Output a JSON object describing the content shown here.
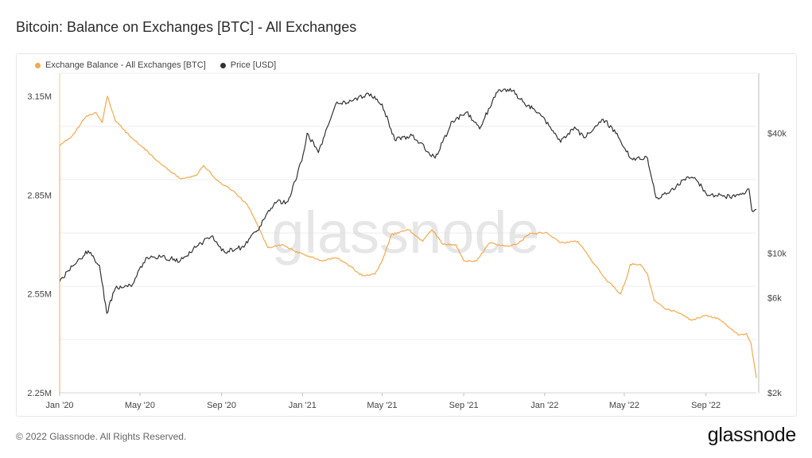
{
  "title": "Bitcoin: Balance on Exchanges [BTC] - All Exchanges",
  "footer": {
    "copyright": "© 2022 Glassnode. All Rights Reserved.",
    "brand": "glassnode"
  },
  "watermark": "glassnode",
  "colors": {
    "balance": "#f5a94c",
    "price": "#333333",
    "grid": "#ececec"
  },
  "chart_data": {
    "type": "line",
    "legend_position": "top-left",
    "grid": true,
    "x": {
      "range": [
        "2020-01-01",
        "2022-11-16"
      ],
      "ticks": [
        {
          "date": "2020-01-01",
          "label": "Jan '20"
        },
        {
          "date": "2020-05-01",
          "label": "May '20"
        },
        {
          "date": "2020-09-01",
          "label": "Sep '20"
        },
        {
          "date": "2021-01-01",
          "label": "Jan '21"
        },
        {
          "date": "2021-05-01",
          "label": "May '21"
        },
        {
          "date": "2021-09-01",
          "label": "Sep '21"
        },
        {
          "date": "2022-01-01",
          "label": "Jan '22"
        },
        {
          "date": "2022-05-01",
          "label": "May '22"
        },
        {
          "date": "2022-09-01",
          "label": "Sep '22"
        }
      ]
    },
    "y_left": {
      "scale": "linear",
      "range": [
        2250000,
        3220000
      ],
      "ticks": [
        {
          "value": 2250000,
          "label": "2.25M"
        },
        {
          "value": 2550000,
          "label": "2.55M"
        },
        {
          "value": 2850000,
          "label": "2.85M"
        },
        {
          "value": 3150000,
          "label": "3.15M"
        }
      ]
    },
    "y_right": {
      "scale": "log",
      "range": [
        2000,
        80000
      ],
      "ticks": [
        {
          "value": 2000,
          "label": "$2k"
        },
        {
          "value": 6000,
          "label": "$6k"
        },
        {
          "value": 10000,
          "label": "$10k"
        },
        {
          "value": 40000,
          "label": "$40k"
        }
      ]
    },
    "series": [
      {
        "name": "Exchange Balance - All Exchanges [BTC]",
        "axis": "left",
        "color": "#f5a94c",
        "points": [
          [
            "2020-01-01",
            3000000
          ],
          [
            "2020-01-20",
            3030000
          ],
          [
            "2020-02-10",
            3090000
          ],
          [
            "2020-02-25",
            3100000
          ],
          [
            "2020-03-05",
            3070000
          ],
          [
            "2020-03-13",
            3150000
          ],
          [
            "2020-03-25",
            3075000
          ],
          [
            "2020-04-15",
            3030000
          ],
          [
            "2020-05-05",
            2995000
          ],
          [
            "2020-06-01",
            2945000
          ],
          [
            "2020-07-01",
            2900000
          ],
          [
            "2020-07-25",
            2910000
          ],
          [
            "2020-08-05",
            2940000
          ],
          [
            "2020-08-25",
            2895000
          ],
          [
            "2020-09-20",
            2860000
          ],
          [
            "2020-10-10",
            2820000
          ],
          [
            "2020-10-25",
            2760000
          ],
          [
            "2020-11-10",
            2690000
          ],
          [
            "2020-12-01",
            2700000
          ],
          [
            "2020-12-20",
            2680000
          ],
          [
            "2021-01-10",
            2665000
          ],
          [
            "2021-02-01",
            2650000
          ],
          [
            "2021-02-20",
            2660000
          ],
          [
            "2021-03-10",
            2640000
          ],
          [
            "2021-04-01",
            2605000
          ],
          [
            "2021-04-20",
            2610000
          ],
          [
            "2021-05-01",
            2650000
          ],
          [
            "2021-05-15",
            2730000
          ],
          [
            "2021-06-10",
            2745000
          ],
          [
            "2021-07-01",
            2710000
          ],
          [
            "2021-07-15",
            2745000
          ],
          [
            "2021-08-01",
            2700000
          ],
          [
            "2021-08-20",
            2700000
          ],
          [
            "2021-09-01",
            2650000
          ],
          [
            "2021-09-20",
            2650000
          ],
          [
            "2021-10-10",
            2705000
          ],
          [
            "2021-11-01",
            2695000
          ],
          [
            "2021-11-20",
            2700000
          ],
          [
            "2021-12-10",
            2735000
          ],
          [
            "2022-01-05",
            2735000
          ],
          [
            "2022-01-25",
            2705000
          ],
          [
            "2022-02-20",
            2710000
          ],
          [
            "2022-03-10",
            2660000
          ],
          [
            "2022-04-01",
            2600000
          ],
          [
            "2022-04-25",
            2550000
          ],
          [
            "2022-05-03",
            2590000
          ],
          [
            "2022-05-10",
            2640000
          ],
          [
            "2022-05-25",
            2640000
          ],
          [
            "2022-06-05",
            2610000
          ],
          [
            "2022-06-15",
            2530000
          ],
          [
            "2022-07-01",
            2505000
          ],
          [
            "2022-07-20",
            2495000
          ],
          [
            "2022-08-10",
            2470000
          ],
          [
            "2022-09-01",
            2485000
          ],
          [
            "2022-09-20",
            2475000
          ],
          [
            "2022-10-05",
            2450000
          ],
          [
            "2022-10-20",
            2425000
          ],
          [
            "2022-11-01",
            2430000
          ],
          [
            "2022-11-08",
            2400000
          ],
          [
            "2022-11-16",
            2295000
          ]
        ]
      },
      {
        "name": "Price [USD]",
        "axis": "right",
        "color": "#333333",
        "points": [
          [
            "2020-01-01",
            7200
          ],
          [
            "2020-01-20",
            8600
          ],
          [
            "2020-02-13",
            10300
          ],
          [
            "2020-03-01",
            8700
          ],
          [
            "2020-03-12",
            5000
          ],
          [
            "2020-03-25",
            6700
          ],
          [
            "2020-04-20",
            7000
          ],
          [
            "2020-05-10",
            9500
          ],
          [
            "2020-06-01",
            9600
          ],
          [
            "2020-07-01",
            9200
          ],
          [
            "2020-07-28",
            11000
          ],
          [
            "2020-08-17",
            12200
          ],
          [
            "2020-09-05",
            10200
          ],
          [
            "2020-10-01",
            10700
          ],
          [
            "2020-10-25",
            13000
          ],
          [
            "2020-11-20",
            18000
          ],
          [
            "2020-12-10",
            18200
          ],
          [
            "2020-12-31",
            29000
          ],
          [
            "2021-01-08",
            40000
          ],
          [
            "2021-01-25",
            32000
          ],
          [
            "2021-02-20",
            56000
          ],
          [
            "2021-03-15",
            58000
          ],
          [
            "2021-04-14",
            63000
          ],
          [
            "2021-05-01",
            56000
          ],
          [
            "2021-05-20",
            37000
          ],
          [
            "2021-06-15",
            39000
          ],
          [
            "2021-07-20",
            30000
          ],
          [
            "2021-08-15",
            46000
          ],
          [
            "2021-09-05",
            51000
          ],
          [
            "2021-09-25",
            42000
          ],
          [
            "2021-10-20",
            64000
          ],
          [
            "2021-11-10",
            67000
          ],
          [
            "2021-12-01",
            57000
          ],
          [
            "2021-12-25",
            50000
          ],
          [
            "2022-01-25",
            36000
          ],
          [
            "2022-02-15",
            43000
          ],
          [
            "2022-03-01",
            38000
          ],
          [
            "2022-03-30",
            47000
          ],
          [
            "2022-04-20",
            40000
          ],
          [
            "2022-05-10",
            30000
          ],
          [
            "2022-06-05",
            30000
          ],
          [
            "2022-06-18",
            19000
          ],
          [
            "2022-07-05",
            20000
          ],
          [
            "2022-07-30",
            23500
          ],
          [
            "2022-08-15",
            24000
          ],
          [
            "2022-09-01",
            20000
          ],
          [
            "2022-09-15",
            19500
          ],
          [
            "2022-10-15",
            19200
          ],
          [
            "2022-11-05",
            21000
          ],
          [
            "2022-11-09",
            16500
          ],
          [
            "2022-11-16",
            16600
          ]
        ]
      }
    ]
  }
}
